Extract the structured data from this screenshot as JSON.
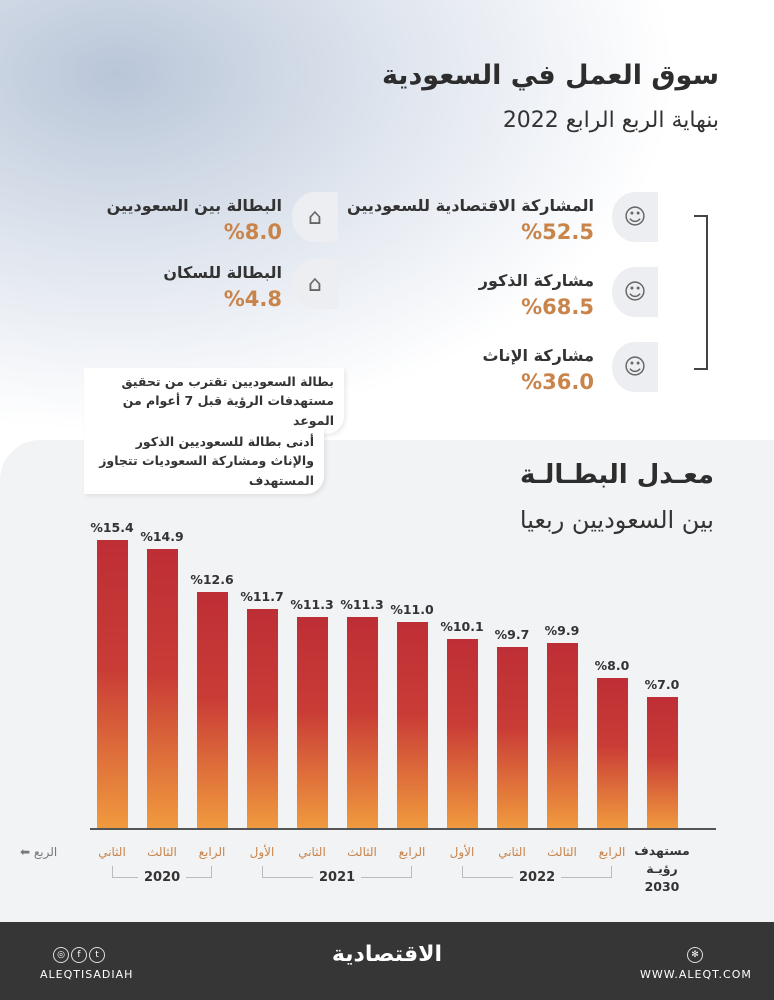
{
  "header": {
    "title": "سوق العمل في السعودية",
    "subtitle": "بنهاية الربع الرابع 2022"
  },
  "stats_right": [
    {
      "label": "المشاركة الاقتصادية للسعوديين",
      "value": "%52.5",
      "icon": "saudi-man-icon"
    },
    {
      "label": "مشاركة الذكور",
      "value": "%68.5",
      "icon": "man-icon"
    },
    {
      "label": "مشاركة الإناث",
      "value": "%36.0",
      "icon": "woman-icon"
    }
  ],
  "stats_left": [
    {
      "label": "البطالة بين السعوديين",
      "value": "%8.0",
      "icon": "saudi-map-icon"
    },
    {
      "label": "البطالة للسكان",
      "value": "%4.8",
      "icon": "house-map-icon"
    }
  ],
  "notes": [
    "بطالة السعوديين تقترب من تحقيق مستهدفات الرؤية قبل 7 أعوام من الموعد",
    "أدنى بطالة للسعوديين الذكور والإناث ومشاركة السعوديات تتجاوز المستهدف"
  ],
  "chart_data": {
    "type": "bar",
    "title": "معـدل البطـالـة",
    "subtitle": "بين السعوديين ربعيا",
    "categories": [
      "الثاني",
      "الثالث",
      "الرابع",
      "الأول",
      "الثاني",
      "الثالث",
      "الرابع",
      "الأول",
      "الثاني",
      "الثالث",
      "الرابع",
      "مستهدف رؤيـة 2030"
    ],
    "values": [
      15.4,
      14.9,
      12.6,
      11.7,
      11.3,
      11.3,
      11.0,
      10.1,
      9.7,
      9.9,
      8.0,
      7.0
    ],
    "value_labels": [
      "%15.4",
      "%14.9",
      "%12.6",
      "%11.7",
      "%11.3",
      "%11.3",
      "%11.0",
      "%10.1",
      "%9.7",
      "%9.9",
      "%8.0",
      "%7.0"
    ],
    "years": [
      {
        "label": "2020",
        "from": 0,
        "to": 2
      },
      {
        "label": "2021",
        "from": 3,
        "to": 6
      },
      {
        "label": "2022",
        "from": 7,
        "to": 10
      }
    ],
    "xlabel": "الربع ⬅",
    "target_label": [
      "مستهدف",
      "رؤيـة",
      "2030"
    ],
    "ylim": [
      0,
      16
    ],
    "colors": {
      "top": "#be2e35",
      "bottom": "#f09a3e",
      "label": "#c8844a"
    }
  },
  "footer": {
    "social_handle": "ALEQTISADIAH",
    "logo": "الاقتصادية",
    "website": "WWW.ALEQT.COM"
  }
}
